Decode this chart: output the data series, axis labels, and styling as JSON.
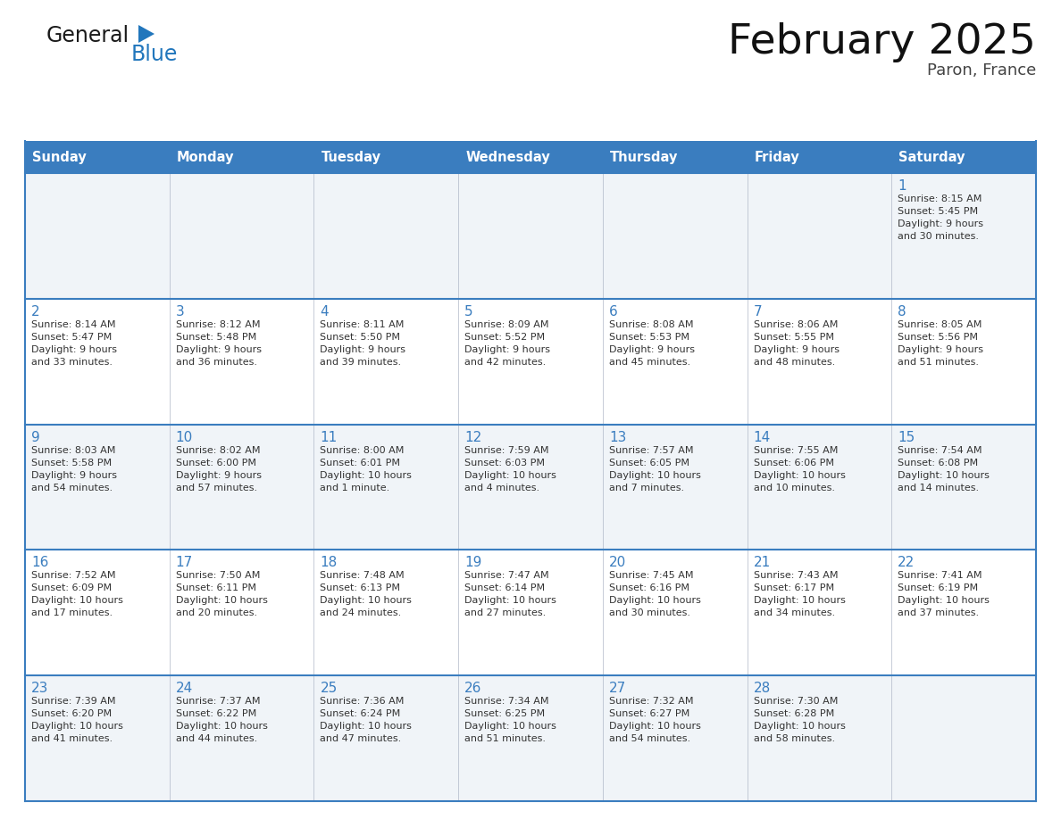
{
  "title": "February 2025",
  "subtitle": "Paron, France",
  "days_of_week": [
    "Sunday",
    "Monday",
    "Tuesday",
    "Wednesday",
    "Thursday",
    "Friday",
    "Saturday"
  ],
  "header_bg": "#3a7dbf",
  "header_text_color": "#ffffff",
  "cell_bg_light": "#f0f4f8",
  "cell_bg_white": "#ffffff",
  "cell_border_color": "#3a7dbf",
  "day_number_color": "#3a7dbf",
  "text_color": "#333333",
  "calendar_data": [
    [
      {
        "day": null,
        "text": ""
      },
      {
        "day": null,
        "text": ""
      },
      {
        "day": null,
        "text": ""
      },
      {
        "day": null,
        "text": ""
      },
      {
        "day": null,
        "text": ""
      },
      {
        "day": null,
        "text": ""
      },
      {
        "day": 1,
        "text": "Sunrise: 8:15 AM\nSunset: 5:45 PM\nDaylight: 9 hours\nand 30 minutes."
      }
    ],
    [
      {
        "day": 2,
        "text": "Sunrise: 8:14 AM\nSunset: 5:47 PM\nDaylight: 9 hours\nand 33 minutes."
      },
      {
        "day": 3,
        "text": "Sunrise: 8:12 AM\nSunset: 5:48 PM\nDaylight: 9 hours\nand 36 minutes."
      },
      {
        "day": 4,
        "text": "Sunrise: 8:11 AM\nSunset: 5:50 PM\nDaylight: 9 hours\nand 39 minutes."
      },
      {
        "day": 5,
        "text": "Sunrise: 8:09 AM\nSunset: 5:52 PM\nDaylight: 9 hours\nand 42 minutes."
      },
      {
        "day": 6,
        "text": "Sunrise: 8:08 AM\nSunset: 5:53 PM\nDaylight: 9 hours\nand 45 minutes."
      },
      {
        "day": 7,
        "text": "Sunrise: 8:06 AM\nSunset: 5:55 PM\nDaylight: 9 hours\nand 48 minutes."
      },
      {
        "day": 8,
        "text": "Sunrise: 8:05 AM\nSunset: 5:56 PM\nDaylight: 9 hours\nand 51 minutes."
      }
    ],
    [
      {
        "day": 9,
        "text": "Sunrise: 8:03 AM\nSunset: 5:58 PM\nDaylight: 9 hours\nand 54 minutes."
      },
      {
        "day": 10,
        "text": "Sunrise: 8:02 AM\nSunset: 6:00 PM\nDaylight: 9 hours\nand 57 minutes."
      },
      {
        "day": 11,
        "text": "Sunrise: 8:00 AM\nSunset: 6:01 PM\nDaylight: 10 hours\nand 1 minute."
      },
      {
        "day": 12,
        "text": "Sunrise: 7:59 AM\nSunset: 6:03 PM\nDaylight: 10 hours\nand 4 minutes."
      },
      {
        "day": 13,
        "text": "Sunrise: 7:57 AM\nSunset: 6:05 PM\nDaylight: 10 hours\nand 7 minutes."
      },
      {
        "day": 14,
        "text": "Sunrise: 7:55 AM\nSunset: 6:06 PM\nDaylight: 10 hours\nand 10 minutes."
      },
      {
        "day": 15,
        "text": "Sunrise: 7:54 AM\nSunset: 6:08 PM\nDaylight: 10 hours\nand 14 minutes."
      }
    ],
    [
      {
        "day": 16,
        "text": "Sunrise: 7:52 AM\nSunset: 6:09 PM\nDaylight: 10 hours\nand 17 minutes."
      },
      {
        "day": 17,
        "text": "Sunrise: 7:50 AM\nSunset: 6:11 PM\nDaylight: 10 hours\nand 20 minutes."
      },
      {
        "day": 18,
        "text": "Sunrise: 7:48 AM\nSunset: 6:13 PM\nDaylight: 10 hours\nand 24 minutes."
      },
      {
        "day": 19,
        "text": "Sunrise: 7:47 AM\nSunset: 6:14 PM\nDaylight: 10 hours\nand 27 minutes."
      },
      {
        "day": 20,
        "text": "Sunrise: 7:45 AM\nSunset: 6:16 PM\nDaylight: 10 hours\nand 30 minutes."
      },
      {
        "day": 21,
        "text": "Sunrise: 7:43 AM\nSunset: 6:17 PM\nDaylight: 10 hours\nand 34 minutes."
      },
      {
        "day": 22,
        "text": "Sunrise: 7:41 AM\nSunset: 6:19 PM\nDaylight: 10 hours\nand 37 minutes."
      }
    ],
    [
      {
        "day": 23,
        "text": "Sunrise: 7:39 AM\nSunset: 6:20 PM\nDaylight: 10 hours\nand 41 minutes."
      },
      {
        "day": 24,
        "text": "Sunrise: 7:37 AM\nSunset: 6:22 PM\nDaylight: 10 hours\nand 44 minutes."
      },
      {
        "day": 25,
        "text": "Sunrise: 7:36 AM\nSunset: 6:24 PM\nDaylight: 10 hours\nand 47 minutes."
      },
      {
        "day": 26,
        "text": "Sunrise: 7:34 AM\nSunset: 6:25 PM\nDaylight: 10 hours\nand 51 minutes."
      },
      {
        "day": 27,
        "text": "Sunrise: 7:32 AM\nSunset: 6:27 PM\nDaylight: 10 hours\nand 54 minutes."
      },
      {
        "day": 28,
        "text": "Sunrise: 7:30 AM\nSunset: 6:28 PM\nDaylight: 10 hours\nand 58 minutes."
      },
      {
        "day": null,
        "text": ""
      }
    ]
  ],
  "logo_general_color": "#1a1a1a",
  "logo_blue_color": "#2176bc",
  "logo_triangle_color": "#2176bc"
}
